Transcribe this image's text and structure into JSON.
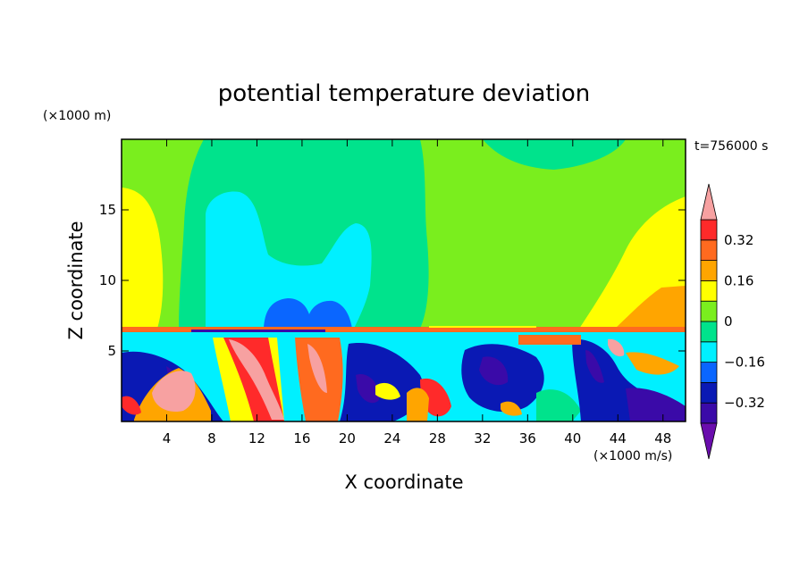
{
  "chart_data": {
    "type": "heatmap",
    "title": "potential temperature deviation",
    "xlabel": "X coordinate",
    "ylabel": "Z coordinate",
    "x_unit": "(×1000 m/s)",
    "y_unit": "(×1000 m)",
    "time_label": "t=756000 s",
    "xlim": [
      0,
      50
    ],
    "ylim": [
      0,
      20
    ],
    "x_ticks": [
      "4",
      "8",
      "12",
      "16",
      "20",
      "24",
      "28",
      "32",
      "36",
      "40",
      "44",
      "48"
    ],
    "y_ticks": [
      "5",
      "10",
      "15"
    ],
    "colorbar": {
      "tick_labels": [
        "0.32",
        "0.16",
        "0",
        "−0.16",
        "−0.32"
      ],
      "levels": [
        -0.4,
        -0.32,
        -0.24,
        -0.16,
        -0.08,
        0,
        0.08,
        0.16,
        0.24,
        0.32,
        0.4
      ],
      "colors": [
        "#6a0dad",
        "#3a0aa8",
        "#0a19b4",
        "#0a66ff",
        "#00f0ff",
        "#00e38c",
        "#7aee1e",
        "#ffff00",
        "#ffa500",
        "#ff6a1f",
        "#ff2a2a",
        "#f7a1a1"
      ],
      "extend": "both"
    },
    "regions": [
      {
        "name": "upper-background",
        "x": [
          0,
          50
        ],
        "z": [
          6.6,
          20
        ],
        "value": 0.04
      },
      {
        "name": "left-upper-band",
        "x": [
          0,
          4
        ],
        "z": [
          6.6,
          16.5
        ],
        "value": 0.2
      },
      {
        "name": "right-upper-band",
        "x": [
          43,
          50
        ],
        "z": [
          6.6,
          16
        ],
        "value": 0.2
      },
      {
        "name": "central-cold-plume",
        "x": [
          7,
          27
        ],
        "z": [
          6.6,
          20
        ],
        "value": -0.04
      },
      {
        "name": "central-cold-core",
        "x": [
          8,
          23
        ],
        "z": [
          6.6,
          16.2
        ],
        "value": -0.1
      },
      {
        "name": "central-cold-lobes",
        "x": [
          12,
          20
        ],
        "z": [
          6.6,
          8.7
        ],
        "value": -0.2
      },
      {
        "name": "lower-turbulent-layer",
        "x": [
          0,
          50
        ],
        "z": [
          0,
          6.6
        ],
        "value": 0
      }
    ]
  }
}
